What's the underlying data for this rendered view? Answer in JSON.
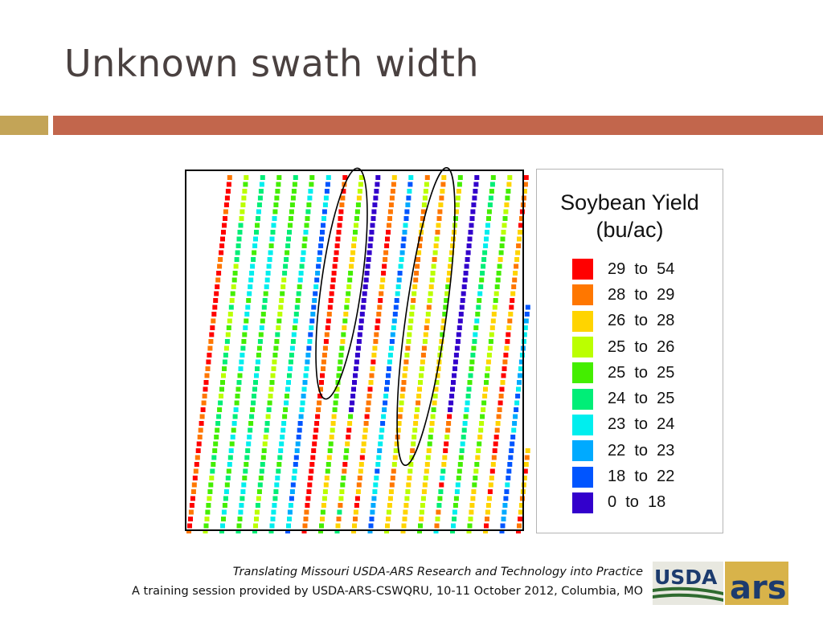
{
  "slide": {
    "title": "Unknown swath width"
  },
  "legend": {
    "title_line1": "Soybean Yield",
    "title_line2": "(bu/ac)",
    "items": [
      {
        "label": "29  to  54",
        "color": "#ff0000"
      },
      {
        "label": "28  to  29",
        "color": "#ff7700"
      },
      {
        "label": "26  to  28",
        "color": "#ffd400"
      },
      {
        "label": "25  to  26",
        "color": "#bbff00"
      },
      {
        "label": "25  to  25",
        "color": "#44ee00"
      },
      {
        "label": "24  to  25",
        "color": "#00ee77"
      },
      {
        "label": "23  to  24",
        "color": "#00eeee"
      },
      {
        "label": "22  to  23",
        "color": "#00aaff"
      },
      {
        "label": "18  to  22",
        "color": "#0055ff"
      },
      {
        "label": "0  to  18",
        "color": "#3300cc"
      }
    ]
  },
  "footer": {
    "line1": "Translating Missouri USDA-ARS Research and Technology into Practice",
    "line2": "A training session provided by USDA-ARS-CSWQRU, 10-11 October 2012, Columbia, MO"
  },
  "logo": {
    "usda_text": "USDA",
    "ars_text": "ars"
  }
}
